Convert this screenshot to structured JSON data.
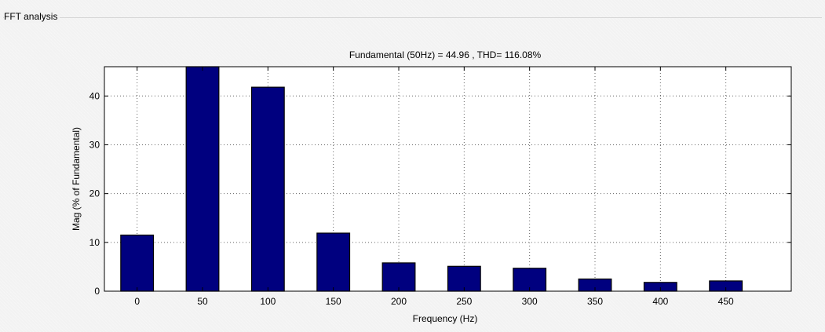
{
  "panel": {
    "title": "FFT analysis"
  },
  "chart_data": {
    "type": "bar",
    "title": "Fundamental (50Hz) = 44.96 , THD= 116.08%",
    "xlabel": "Frequency (Hz)",
    "ylabel": "Mag (% of Fundamental)",
    "categories": [
      "0",
      "50",
      "100",
      "150",
      "200",
      "250",
      "300",
      "350",
      "400",
      "450"
    ],
    "x": [
      0,
      50,
      100,
      150,
      200,
      250,
      300,
      350,
      400,
      450
    ],
    "values": [
      11.5,
      46,
      41.8,
      11.9,
      5.8,
      5.1,
      4.7,
      2.5,
      1.8,
      2.1
    ],
    "xlim": [
      -25,
      500
    ],
    "ylim": [
      0,
      46
    ],
    "yticks": [
      0,
      10,
      20,
      30,
      40
    ],
    "grid": true,
    "bar_color": "#00007f"
  }
}
